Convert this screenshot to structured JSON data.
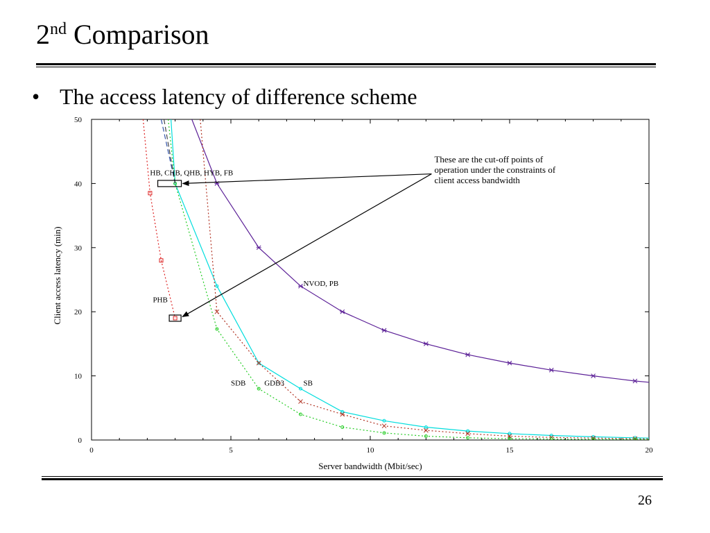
{
  "slide": {
    "title_main": "2",
    "title_sup": "nd",
    "title_rest": " Comparison",
    "bullet": "The access latency of difference scheme",
    "page_number": "26"
  },
  "chart_data": {
    "type": "line",
    "title": "",
    "xlabel": "Server bandwidth (Mbit/sec)",
    "ylabel": "Client access latency (min)",
    "xlim": [
      0,
      20
    ],
    "ylim": [
      0,
      50
    ],
    "x_ticks": [
      0,
      5,
      10,
      15,
      20
    ],
    "y_ticks": [
      0,
      10,
      20,
      30,
      40,
      50
    ],
    "grid": false,
    "series": [
      {
        "name": "NVOD, PB",
        "color": "#5a1e96",
        "dash": "",
        "marker": "star",
        "points": [
          [
            3.6,
            50
          ],
          [
            4.5,
            40
          ],
          [
            6,
            30
          ],
          [
            7.5,
            24
          ],
          [
            9,
            20
          ],
          [
            10.5,
            17.1
          ],
          [
            12,
            15
          ],
          [
            13.5,
            13.3
          ],
          [
            15,
            12
          ],
          [
            16.5,
            10.9
          ],
          [
            18,
            10
          ],
          [
            19.5,
            9.2
          ],
          [
            20,
            9
          ]
        ]
      },
      {
        "name": "HB, CHB, QHB, HYB, FB",
        "color": "#00dddd",
        "dash": "",
        "marker": "circle",
        "points": [
          [
            2.85,
            50
          ],
          [
            3,
            40
          ],
          [
            4.5,
            24
          ],
          [
            6,
            12
          ],
          [
            7.5,
            8
          ],
          [
            9,
            4.4
          ],
          [
            10.5,
            3
          ],
          [
            12,
            2
          ],
          [
            13.5,
            1.4
          ],
          [
            15,
            1
          ],
          [
            16.5,
            0.7
          ],
          [
            18,
            0.5
          ],
          [
            19.5,
            0.35
          ],
          [
            20,
            0.3
          ]
        ]
      },
      {
        "name": "GDB3",
        "color": "#b03020",
        "dash": "2 3",
        "marker": "x",
        "points": [
          [
            3.9,
            50
          ],
          [
            4.5,
            20
          ],
          [
            6,
            12
          ],
          [
            7.5,
            6
          ],
          [
            9,
            4
          ],
          [
            10.5,
            2.2
          ],
          [
            12,
            1.5
          ],
          [
            13.5,
            1
          ],
          [
            15,
            0.6
          ],
          [
            16.5,
            0.4
          ],
          [
            18,
            0.3
          ],
          [
            19.5,
            0.2
          ],
          [
            20,
            0.2
          ]
        ]
      },
      {
        "name": "SDB",
        "color": "#22cc22",
        "dash": "2 3",
        "marker": "circle",
        "points": [
          [
            2.75,
            50
          ],
          [
            3,
            40
          ],
          [
            4.5,
            17.3
          ],
          [
            6,
            8
          ],
          [
            7.5,
            4
          ],
          [
            9,
            2
          ],
          [
            10.5,
            1.1
          ],
          [
            12,
            0.6
          ],
          [
            13.5,
            0.35
          ],
          [
            15,
            0.2
          ],
          [
            16.5,
            0.15
          ],
          [
            18,
            0.1
          ],
          [
            19.5,
            0.1
          ],
          [
            20,
            0.1
          ]
        ]
      },
      {
        "name": "PHB",
        "color": "#dd2222",
        "dash": "2 3",
        "marker": "square",
        "points": [
          [
            1.85,
            50
          ],
          [
            2.1,
            38.5
          ],
          [
            2.5,
            28
          ],
          [
            3,
            19
          ]
        ]
      },
      {
        "name": "",
        "color": "#3355aa",
        "dash": "7 4",
        "marker": "none",
        "points": [
          [
            2.5,
            50
          ],
          [
            3,
            40
          ]
        ]
      },
      {
        "name": "",
        "color": "#444444",
        "dash": "7 4",
        "marker": "none",
        "points": [
          [
            2.6,
            50
          ],
          [
            3,
            40
          ]
        ]
      }
    ],
    "series_labels": [
      {
        "text": "NVOD, PB",
        "x": 7.6,
        "y": 24
      },
      {
        "text": "HB, CHB, QHB, HYB, FB",
        "x": 2.1,
        "y": 41.3
      },
      {
        "text": "PHB",
        "x": 2.2,
        "y": 21.5
      },
      {
        "text": "SDB",
        "x": 5,
        "y": 8.5
      },
      {
        "text": "GDB3",
        "x": 6.2,
        "y": 8.5
      },
      {
        "text": "SB",
        "x": 7.6,
        "y": 8.5
      }
    ],
    "annotation": {
      "lines": [
        "These are the cut-off points of",
        "operation under the constraints of",
        "client access bandwidth"
      ],
      "cutoff_points": [
        [
          2.8,
          40
        ],
        [
          3.0,
          19
        ]
      ]
    }
  }
}
